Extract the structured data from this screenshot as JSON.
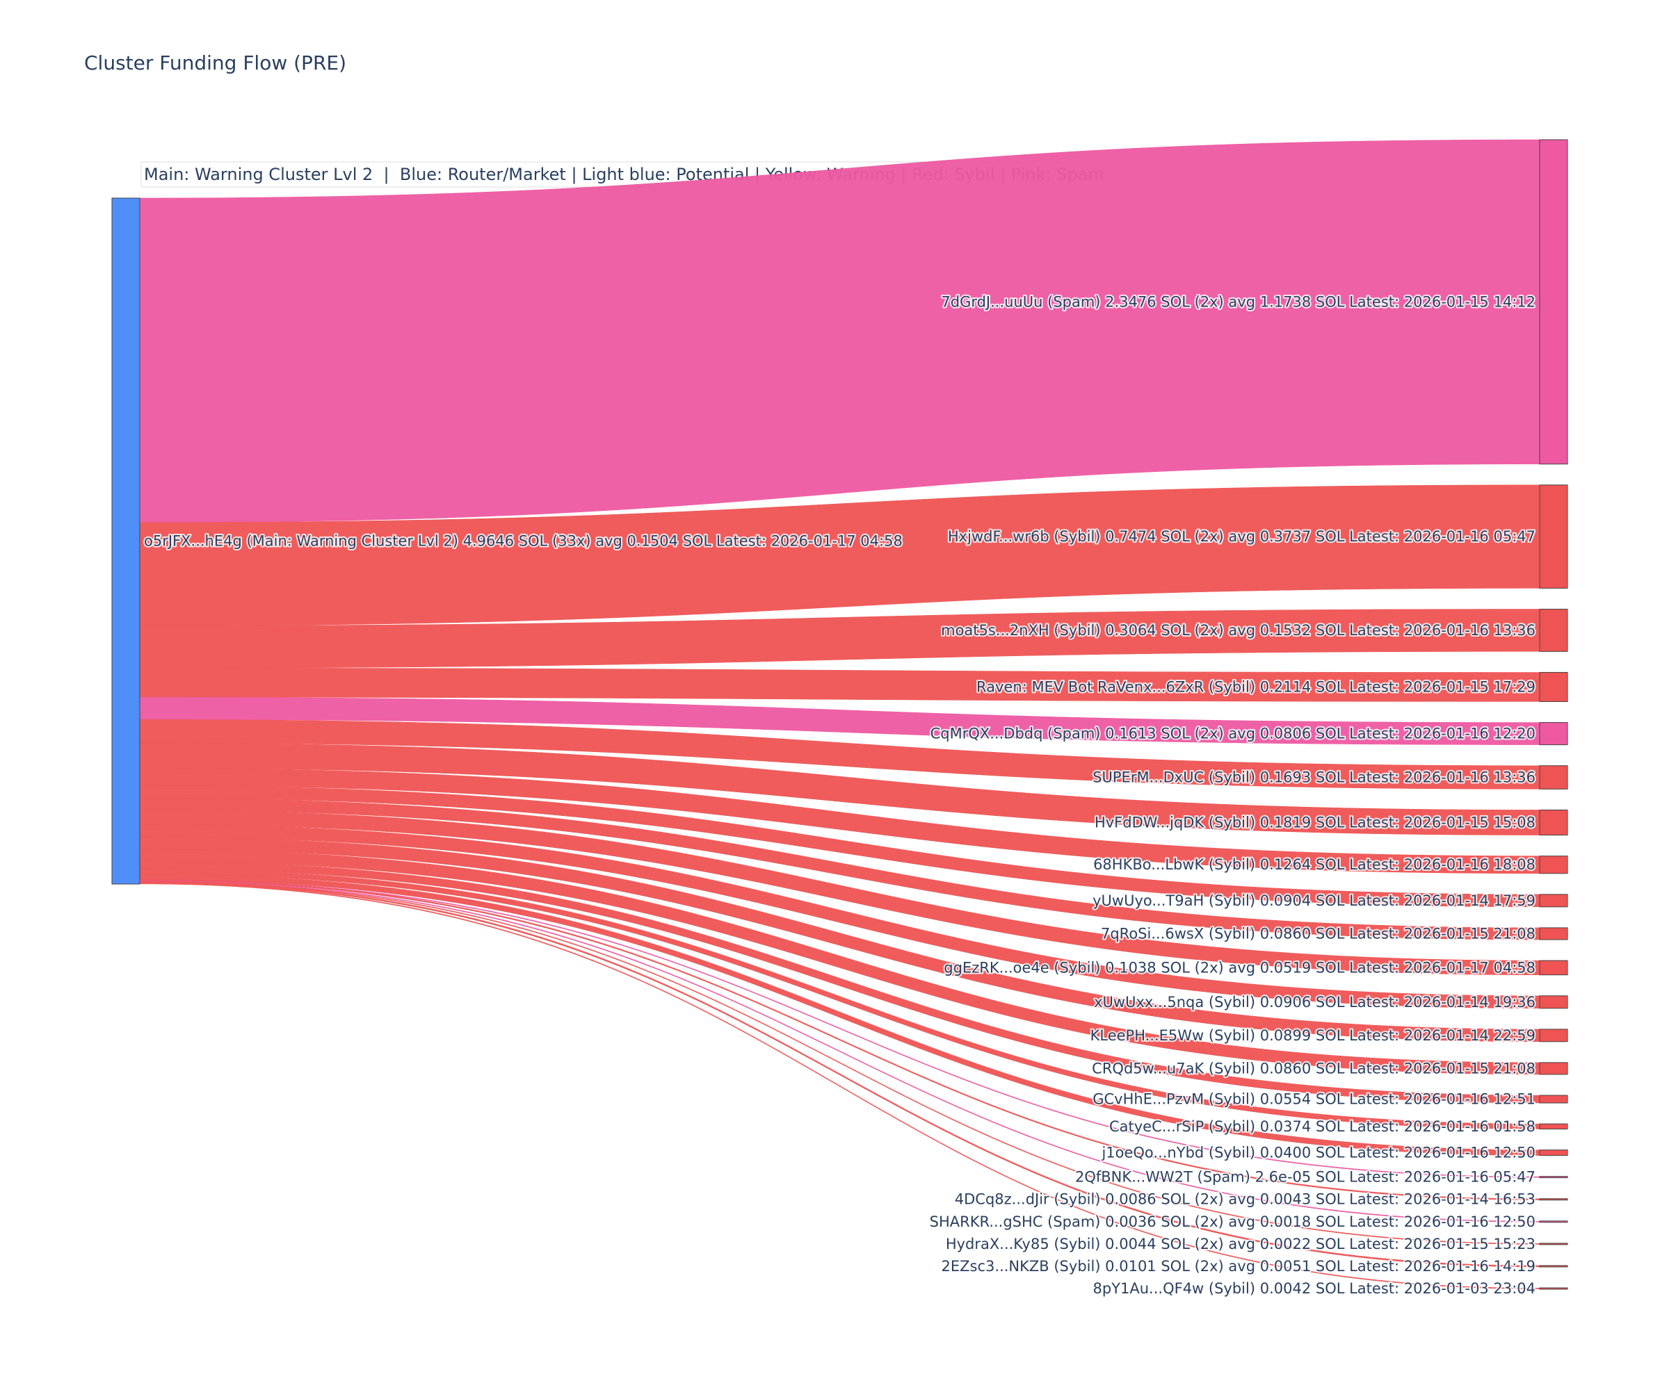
{
  "chart_data": {
    "type": "sankey",
    "title": "Cluster Funding Flow (PRE)",
    "legend_text": "Main: Warning Cluster Lvl 2  |  Blue: Router/Market | Light blue: Potential | Yellow: Warning | Red: Sybil | Pink: Spam",
    "colors": {
      "source_node": "#4f8ef7",
      "Sybil": "#ef5353",
      "Spam": "#ee59a1",
      "node_border": "#444444"
    },
    "source": {
      "label": "o5rJFX...hE4g (Main: Warning Cluster Lvl 2) 4.9646 SOL (33x) avg 0.1504 SOL Latest: 2026-01-17 04:58",
      "total": 4.9646
    },
    "targets": [
      {
        "label": "7dGrdJ...uuUu (Spam) 2.3476 SOL (2x) avg 1.1738 SOL Latest: 2026-01-15 14:12",
        "category": "Spam",
        "value": 2.3476
      },
      {
        "label": "HxjwdF...wr6b (Sybil) 0.7474 SOL (2x) avg 0.3737 SOL Latest: 2026-01-16 05:47",
        "category": "Sybil",
        "value": 0.7474
      },
      {
        "label": "moat5s...2nXH (Sybil) 0.3064 SOL (2x) avg 0.1532 SOL Latest: 2026-01-16 13:36",
        "category": "Sybil",
        "value": 0.3064
      },
      {
        "label": "Raven: MEV Bot RaVenx...6ZxR (Sybil) 0.2114 SOL Latest: 2026-01-15 17:29",
        "category": "Sybil",
        "value": 0.2114
      },
      {
        "label": "CqMrQX...Dbdq (Spam) 0.1613 SOL (2x) avg 0.0806 SOL Latest: 2026-01-16 12:20",
        "category": "Spam",
        "value": 0.1613
      },
      {
        "label": "SUPErM...DxUC (Sybil) 0.1693 SOL Latest: 2026-01-16 13:36",
        "category": "Sybil",
        "value": 0.1693
      },
      {
        "label": "HvFdDW...jqDK (Sybil) 0.1819 SOL Latest: 2026-01-15 15:08",
        "category": "Sybil",
        "value": 0.1819
      },
      {
        "label": "68HKBo...LbwK (Sybil) 0.1264 SOL Latest: 2026-01-16 18:08",
        "category": "Sybil",
        "value": 0.1264
      },
      {
        "label": "yUwUyo...T9aH (Sybil) 0.0904 SOL Latest: 2026-01-14 17:59",
        "category": "Sybil",
        "value": 0.0904
      },
      {
        "label": "7qRoSi...6wsX (Sybil) 0.0860 SOL Latest: 2026-01-15 21:08",
        "category": "Sybil",
        "value": 0.086
      },
      {
        "label": "ggEzRK...oe4e (Sybil) 0.1038 SOL (2x) avg 0.0519 SOL Latest: 2026-01-17 04:58",
        "category": "Sybil",
        "value": 0.1038
      },
      {
        "label": "xUwUxx...5nqa (Sybil) 0.0906 SOL Latest: 2026-01-14 19:36",
        "category": "Sybil",
        "value": 0.0906
      },
      {
        "label": "KLeePH...E5Ww (Sybil) 0.0899 SOL Latest: 2026-01-14 22:59",
        "category": "Sybil",
        "value": 0.0899
      },
      {
        "label": "CRQd5w...u7aK (Sybil) 0.0860 SOL Latest: 2026-01-15 21:08",
        "category": "Sybil",
        "value": 0.086
      },
      {
        "label": "GCvHhE...PzvM (Sybil) 0.0554 SOL Latest: 2026-01-16 12:51",
        "category": "Sybil",
        "value": 0.0554
      },
      {
        "label": "CatyeC...rSiP (Sybil) 0.0374 SOL Latest: 2026-01-16 01:58",
        "category": "Sybil",
        "value": 0.0374
      },
      {
        "label": "j1oeQo...nYbd (Sybil) 0.0400 SOL Latest: 2026-01-16 12:50",
        "category": "Sybil",
        "value": 0.04
      },
      {
        "label": "2QfBNK...WW2T (Spam) 2.6e-05 SOL Latest: 2026-01-16 05:47",
        "category": "Spam",
        "value": 2.6e-05
      },
      {
        "label": "4DCq8z...dJir (Sybil) 0.0086 SOL (2x) avg 0.0043 SOL Latest: 2026-01-14 16:53",
        "category": "Sybil",
        "value": 0.0086
      },
      {
        "label": "SHARKR...gSHC (Spam) 0.0036 SOL (2x) avg 0.0018 SOL Latest: 2026-01-16 12:50",
        "category": "Spam",
        "value": 0.0036
      },
      {
        "label": "HydraX...Ky85 (Sybil) 0.0044 SOL (2x) avg 0.0022 SOL Latest: 2026-01-15 15:23",
        "category": "Sybil",
        "value": 0.0044
      },
      {
        "label": "2EZsc3...NKZB (Sybil) 0.0101 SOL (2x) avg 0.0051 SOL Latest: 2026-01-16 14:19",
        "category": "Sybil",
        "value": 0.0101
      },
      {
        "label": "8pY1Au...QF4w (Sybil) 0.0042 SOL Latest: 2026-01-03 23:04",
        "category": "Sybil",
        "value": 0.0042
      }
    ]
  }
}
